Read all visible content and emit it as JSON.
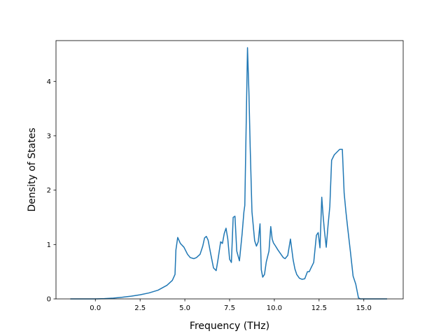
{
  "chart_data": {
    "type": "line",
    "title": "",
    "xlabel": "Frequency (THz)",
    "ylabel": "Density of States",
    "xlim": [
      -2.2,
      17.2
    ],
    "ylim": [
      0,
      4.75
    ],
    "xticks": [
      0.0,
      2.5,
      5.0,
      7.5,
      10.0,
      12.5,
      15.0
    ],
    "xtick_labels": [
      "0.0",
      "2.5",
      "5.0",
      "7.5",
      "10.0",
      "12.5",
      "15.0"
    ],
    "yticks": [
      0,
      1,
      2,
      3,
      4
    ],
    "ytick_labels": [
      "0",
      "1",
      "2",
      "3",
      "4"
    ],
    "grid": false,
    "legend": "none",
    "series": [
      {
        "color": "#1f77b4",
        "x": [
          -1.4,
          0.0,
          0.5,
          1.0,
          1.5,
          2.0,
          2.5,
          3.0,
          3.5,
          4.0,
          4.3,
          4.45,
          4.5,
          4.6,
          4.75,
          4.95,
          5.15,
          5.3,
          5.5,
          5.65,
          5.85,
          6.0,
          6.1,
          6.2,
          6.3,
          6.45,
          6.6,
          6.75,
          6.85,
          7.0,
          7.1,
          7.2,
          7.3,
          7.4,
          7.5,
          7.6,
          7.7,
          7.8,
          7.9,
          8.05,
          8.2,
          8.3,
          8.35,
          8.5,
          8.58,
          8.65,
          8.75,
          8.9,
          9.0,
          9.1,
          9.2,
          9.27,
          9.35,
          9.45,
          9.55,
          9.7,
          9.8,
          9.88,
          9.95,
          10.05,
          10.2,
          10.35,
          10.5,
          10.6,
          10.75,
          10.9,
          11.05,
          11.15,
          11.25,
          11.4,
          11.55,
          11.7,
          11.85,
          11.95,
          12.05,
          12.2,
          12.35,
          12.45,
          12.55,
          12.65,
          12.72,
          12.8,
          12.9,
          13.0,
          13.1,
          13.2,
          13.35,
          13.5,
          13.65,
          13.8,
          13.9,
          14.0,
          14.1,
          14.25,
          14.4,
          14.55,
          14.7,
          14.8,
          14.9,
          15.0,
          16.3
        ],
        "y": [
          0.0,
          0.0,
          0.005,
          0.015,
          0.03,
          0.05,
          0.075,
          0.11,
          0.16,
          0.25,
          0.34,
          0.45,
          0.9,
          1.13,
          1.02,
          0.95,
          0.82,
          0.76,
          0.74,
          0.76,
          0.82,
          0.97,
          1.12,
          1.15,
          1.08,
          0.82,
          0.57,
          0.52,
          0.72,
          1.05,
          1.02,
          1.2,
          1.3,
          1.1,
          0.73,
          0.67,
          1.5,
          1.52,
          0.88,
          0.7,
          1.2,
          1.6,
          1.72,
          4.62,
          3.8,
          2.8,
          1.6,
          1.07,
          0.97,
          1.05,
          1.38,
          0.54,
          0.4,
          0.45,
          0.68,
          0.88,
          1.33,
          1.1,
          1.03,
          0.98,
          0.9,
          0.83,
          0.76,
          0.74,
          0.8,
          1.1,
          0.72,
          0.55,
          0.45,
          0.38,
          0.36,
          0.37,
          0.5,
          0.5,
          0.57,
          0.67,
          1.17,
          1.22,
          0.94,
          1.87,
          1.55,
          1.25,
          0.95,
          1.35,
          1.7,
          2.55,
          2.65,
          2.7,
          2.75,
          2.75,
          1.95,
          1.6,
          1.3,
          0.87,
          0.42,
          0.27,
          0.02,
          0.0,
          0.0,
          0.0,
          0.0
        ]
      }
    ]
  }
}
